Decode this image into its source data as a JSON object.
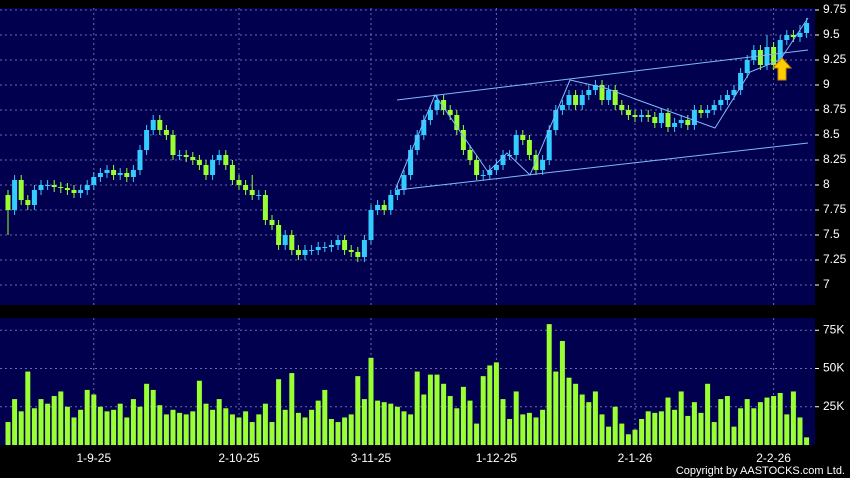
{
  "chart_data": [
    {
      "type": "candlestick",
      "categories": [
        null,
        null,
        null,
        null,
        null,
        null,
        null,
        null,
        null,
        null,
        null,
        null,
        null,
        "1-9-25",
        null,
        null,
        null,
        null,
        null,
        null,
        null,
        null,
        null,
        null,
        null,
        null,
        null,
        null,
        null,
        null,
        null,
        null,
        null,
        null,
        null,
        "2-10-25",
        null,
        null,
        null,
        null,
        null,
        null,
        null,
        null,
        null,
        null,
        null,
        null,
        null,
        null,
        null,
        null,
        null,
        null,
        null,
        "3-11-25",
        null,
        null,
        null,
        null,
        null,
        null,
        null,
        null,
        null,
        null,
        null,
        null,
        null,
        null,
        null,
        null,
        null,
        null,
        "1-12-25",
        null,
        null,
        null,
        null,
        null,
        null,
        null,
        null,
        null,
        null,
        null,
        null,
        null,
        null,
        null,
        null,
        null,
        null,
        null,
        null,
        "2-1-26",
        null,
        null,
        null,
        null,
        null,
        null,
        null,
        null,
        null,
        null,
        null,
        null,
        null,
        null,
        null,
        null,
        null,
        null,
        null,
        null,
        "2-2-26",
        null,
        null,
        null,
        null,
        null
      ],
      "open": [
        7.9,
        7.75,
        8.05,
        7.85,
        7.8,
        7.95,
        8.0,
        8.0,
        7.98,
        7.97,
        7.95,
        7.92,
        7.95,
        8.0,
        8.08,
        8.12,
        8.15,
        8.1,
        8.12,
        8.08,
        8.15,
        8.35,
        8.55,
        8.65,
        8.55,
        8.5,
        8.3,
        8.3,
        8.28,
        8.25,
        8.2,
        8.1,
        8.25,
        8.3,
        8.2,
        8.05,
        8.0,
        7.95,
        7.9,
        7.9,
        7.65,
        7.6,
        7.4,
        7.5,
        7.35,
        7.3,
        7.35,
        7.35,
        7.38,
        7.38,
        7.4,
        7.45,
        7.35,
        7.33,
        7.28,
        7.45,
        7.75,
        7.8,
        7.75,
        7.9,
        7.95,
        8.1,
        8.35,
        8.5,
        8.65,
        8.75,
        8.85,
        8.75,
        8.7,
        8.55,
        8.35,
        8.25,
        8.1,
        8.1,
        8.15,
        8.2,
        8.3,
        8.3,
        8.5,
        8.45,
        8.3,
        8.15,
        8.25,
        8.55,
        8.75,
        8.8,
        8.9,
        8.8,
        8.9,
        8.95,
        9.0,
        8.85,
        8.95,
        8.8,
        8.75,
        8.7,
        8.68,
        8.7,
        8.68,
        8.62,
        8.72,
        8.58,
        8.62,
        8.65,
        8.6,
        8.75,
        8.72,
        8.75,
        8.8,
        8.85,
        8.9,
        8.95,
        9.12,
        9.25,
        9.35,
        9.2,
        9.38,
        9.2,
        9.45,
        9.5,
        9.48,
        9.52
      ],
      "high": [
        7.95,
        8.1,
        8.1,
        7.9,
        8.0,
        8.05,
        8.05,
        8.05,
        8.03,
        8.02,
        8.0,
        8.0,
        8.05,
        8.13,
        8.17,
        8.2,
        8.2,
        8.17,
        8.17,
        8.2,
        8.4,
        8.6,
        8.7,
        8.7,
        8.6,
        8.55,
        8.35,
        8.35,
        8.33,
        8.3,
        8.25,
        8.3,
        8.35,
        8.35,
        8.25,
        8.1,
        8.05,
        8.1,
        7.95,
        7.95,
        7.7,
        7.65,
        7.55,
        7.55,
        7.4,
        7.4,
        7.4,
        7.43,
        7.43,
        7.45,
        7.5,
        7.5,
        7.4,
        7.38,
        7.5,
        7.8,
        7.85,
        7.85,
        7.95,
        8.0,
        8.15,
        8.4,
        8.55,
        8.7,
        8.8,
        8.9,
        8.9,
        8.8,
        8.75,
        8.6,
        8.4,
        8.3,
        8.15,
        8.2,
        8.25,
        8.35,
        8.35,
        8.55,
        8.55,
        8.5,
        8.35,
        8.3,
        8.6,
        8.8,
        8.85,
        8.95,
        8.95,
        8.95,
        9.0,
        9.05,
        9.05,
        9.0,
        9.0,
        8.85,
        8.8,
        8.75,
        8.75,
        8.75,
        8.73,
        8.77,
        8.77,
        8.67,
        8.7,
        8.7,
        8.8,
        8.8,
        8.8,
        8.85,
        8.9,
        8.95,
        9.0,
        9.17,
        9.3,
        9.4,
        9.4,
        9.5,
        9.43,
        9.5,
        9.55,
        9.55,
        9.6,
        9.67
      ],
      "low": [
        7.5,
        7.7,
        7.8,
        7.75,
        7.75,
        7.9,
        7.95,
        7.93,
        7.92,
        7.9,
        7.87,
        7.87,
        7.9,
        7.95,
        8.03,
        8.07,
        8.05,
        8.05,
        8.03,
        8.03,
        8.1,
        8.3,
        8.5,
        8.5,
        8.45,
        8.25,
        8.25,
        8.23,
        8.2,
        8.15,
        8.05,
        8.05,
        8.2,
        8.15,
        8.0,
        7.95,
        7.9,
        7.85,
        7.85,
        7.6,
        7.55,
        7.35,
        7.35,
        7.3,
        7.25,
        7.25,
        7.3,
        7.3,
        7.33,
        7.33,
        7.35,
        7.3,
        7.28,
        7.23,
        7.23,
        7.4,
        7.7,
        7.7,
        7.7,
        7.85,
        7.9,
        8.05,
        8.3,
        8.45,
        8.6,
        8.7,
        8.7,
        8.65,
        8.5,
        8.3,
        8.2,
        8.05,
        8.05,
        8.05,
        8.1,
        8.15,
        8.25,
        8.25,
        8.4,
        8.25,
        8.1,
        8.1,
        8.2,
        8.5,
        8.7,
        8.75,
        8.75,
        8.75,
        8.85,
        8.9,
        8.8,
        8.8,
        8.75,
        8.7,
        8.65,
        8.63,
        8.63,
        8.63,
        8.57,
        8.57,
        8.53,
        8.53,
        8.57,
        8.55,
        8.55,
        8.67,
        8.67,
        8.7,
        8.75,
        8.8,
        8.85,
        8.9,
        9.07,
        9.2,
        9.15,
        9.15,
        9.15,
        9.15,
        9.4,
        9.43,
        9.43,
        9.47
      ],
      "close": [
        7.75,
        8.05,
        7.85,
        7.8,
        7.95,
        8.0,
        8.0,
        7.98,
        7.97,
        7.95,
        7.92,
        7.95,
        8.0,
        8.08,
        8.12,
        8.15,
        8.1,
        8.12,
        8.08,
        8.15,
        8.35,
        8.55,
        8.65,
        8.55,
        8.5,
        8.3,
        8.3,
        8.28,
        8.25,
        8.2,
        8.1,
        8.25,
        8.3,
        8.2,
        8.05,
        8.0,
        7.95,
        7.9,
        7.9,
        7.65,
        7.6,
        7.4,
        7.5,
        7.35,
        7.3,
        7.35,
        7.35,
        7.38,
        7.38,
        7.4,
        7.45,
        7.35,
        7.33,
        7.28,
        7.45,
        7.75,
        7.8,
        7.75,
        7.9,
        7.95,
        8.1,
        8.35,
        8.5,
        8.65,
        8.75,
        8.85,
        8.75,
        8.7,
        8.55,
        8.35,
        8.25,
        8.1,
        8.1,
        8.15,
        8.2,
        8.3,
        8.3,
        8.5,
        8.45,
        8.3,
        8.15,
        8.25,
        8.55,
        8.75,
        8.8,
        8.9,
        8.8,
        8.9,
        8.95,
        9.0,
        8.85,
        8.95,
        8.8,
        8.75,
        8.7,
        8.68,
        8.7,
        8.68,
        8.62,
        8.72,
        8.58,
        8.62,
        8.65,
        8.6,
        8.75,
        8.72,
        8.75,
        8.8,
        8.85,
        8.9,
        8.95,
        9.12,
        9.25,
        9.35,
        9.2,
        9.38,
        9.2,
        9.45,
        9.5,
        9.48,
        9.52,
        9.62
      ],
      "up_color": "#33ccff",
      "down_color": "#99ff33",
      "ylim": [
        6.8,
        9.77
      ],
      "yticks": [
        7,
        7.25,
        7.5,
        7.75,
        8,
        8.25,
        8.5,
        8.75,
        9,
        9.25,
        9.5,
        9.75
      ],
      "grid": true
    },
    {
      "type": "bar",
      "values": [
        15000,
        30000,
        22000,
        48000,
        24000,
        30000,
        27000,
        32000,
        35000,
        25000,
        18000,
        23000,
        36000,
        33000,
        25000,
        22000,
        23000,
        27000,
        18000,
        30000,
        25000,
        40000,
        36000,
        26000,
        20000,
        23000,
        21000,
        20000,
        22000,
        42000,
        27000,
        23000,
        30000,
        24000,
        20000,
        18000,
        22000,
        15000,
        20000,
        27000,
        15000,
        43000,
        23000,
        47000,
        21000,
        18000,
        23000,
        29000,
        36000,
        17000,
        15000,
        18000,
        20000,
        45000,
        30000,
        57000,
        29000,
        28000,
        27000,
        25000,
        22000,
        20000,
        48000,
        33000,
        46000,
        46000,
        40000,
        32000,
        24000,
        38000,
        29000,
        14000,
        45000,
        52000,
        54000,
        30000,
        17000,
        35000,
        20000,
        21000,
        18000,
        23000,
        79000,
        48000,
        68000,
        44000,
        40000,
        33000,
        28000,
        35000,
        20000,
        12000,
        25000,
        14000,
        7000,
        10000,
        17000,
        22000,
        21000,
        22000,
        31000,
        23000,
        35000,
        19000,
        28000,
        21000,
        40000,
        15000,
        30000,
        32000,
        12000,
        24000,
        30000,
        24000,
        28000,
        31000,
        32000,
        34000,
        20000,
        35000,
        18000,
        5000
      ],
      "color": "#99ff33",
      "ylim": [
        0,
        83000
      ],
      "yticks": [
        {
          "value": 25000,
          "label": "25K"
        },
        {
          "value": 50000,
          "label": "50K"
        },
        {
          "value": 75000,
          "label": "75K"
        }
      ],
      "grid": true
    }
  ],
  "footer": "Copyright by AASTOCKS.com Ltd."
}
